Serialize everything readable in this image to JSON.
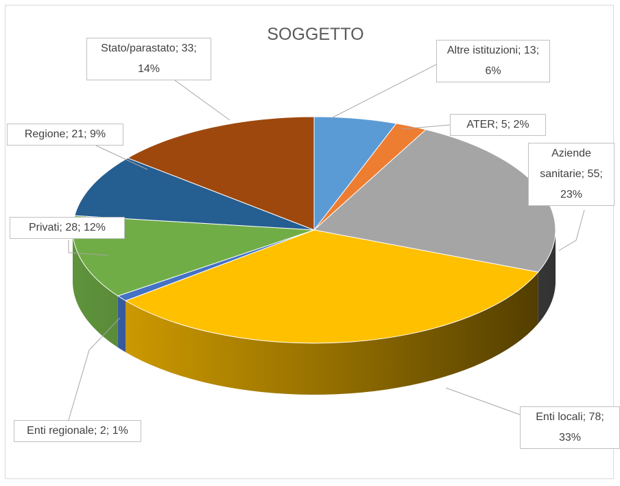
{
  "chart_data": {
    "type": "pie3d",
    "title": "SOGGETTO",
    "values": [
      13,
      5,
      55,
      78,
      2,
      28,
      21,
      33
    ],
    "value_labels": [
      "Altre istituzioni; 13; 6%",
      "ATER; 5; 2%",
      "Aziende sanitarie; 55; 23%",
      "Enti locali; 78; 33%",
      "Enti regionale; 2; 1%",
      "Privati; 28; 12%",
      "Regione; 21; 9%",
      "Stato/parastato; 33; 14%"
    ],
    "colors": [
      "#5b9bd5",
      "#ed7d31",
      "#a5a5a5",
      "#ffc000",
      "#4472c4",
      "#70ad47",
      "#255e91",
      "#9e480e"
    ]
  }
}
